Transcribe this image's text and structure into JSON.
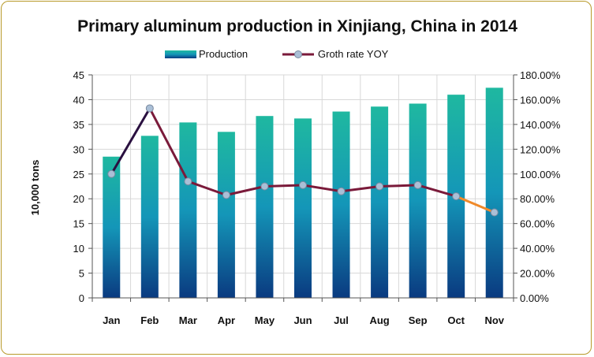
{
  "chart_data": {
    "type": "bar",
    "title": "Primary aluminum production in Xinjiang, China in 2014",
    "ylabel": "10,000 tons",
    "y2label": "",
    "xlabel": "",
    "categories": [
      "Jan",
      "Feb",
      "Mar",
      "Apr",
      "May",
      "Jun",
      "Jul",
      "Aug",
      "Sep",
      "Oct",
      "Nov"
    ],
    "ylim": [
      0,
      45
    ],
    "y_ticks": [
      0,
      5,
      10,
      15,
      20,
      25,
      30,
      35,
      40,
      45
    ],
    "y2lim": [
      0,
      1.8
    ],
    "y2_ticks": [
      "0.00%",
      "20.00%",
      "40.00%",
      "60.00%",
      "80.00%",
      "100.00%",
      "120.00%",
      "140.00%",
      "160.00%",
      "180.00%"
    ],
    "grid": true,
    "legend_position": "top",
    "series": [
      {
        "name": "Production",
        "kind": "bar",
        "axis": "left",
        "values": [
          28.5,
          32.7,
          35.4,
          33.5,
          36.7,
          36.2,
          37.6,
          38.6,
          39.2,
          41.0,
          42.4
        ]
      },
      {
        "name": "Groth rate YOY",
        "kind": "line",
        "axis": "right",
        "values": [
          1.0,
          1.53,
          0.94,
          0.83,
          0.9,
          0.91,
          0.86,
          0.9,
          0.91,
          0.82,
          0.69
        ]
      }
    ],
    "colors": {
      "bar_top": "#1fb8a0",
      "bar_mid": "#1496b8",
      "bar_bottom": "#0a3a80",
      "line_main": "#7a1a3a",
      "line_first_segment": "#2a1040",
      "line_last_segment": "#f08a2a",
      "marker_fill": "#aabfd6",
      "marker_stroke": "#7a8aa0",
      "grid": "#d8d8d8",
      "frame": "#b89a2a"
    }
  }
}
